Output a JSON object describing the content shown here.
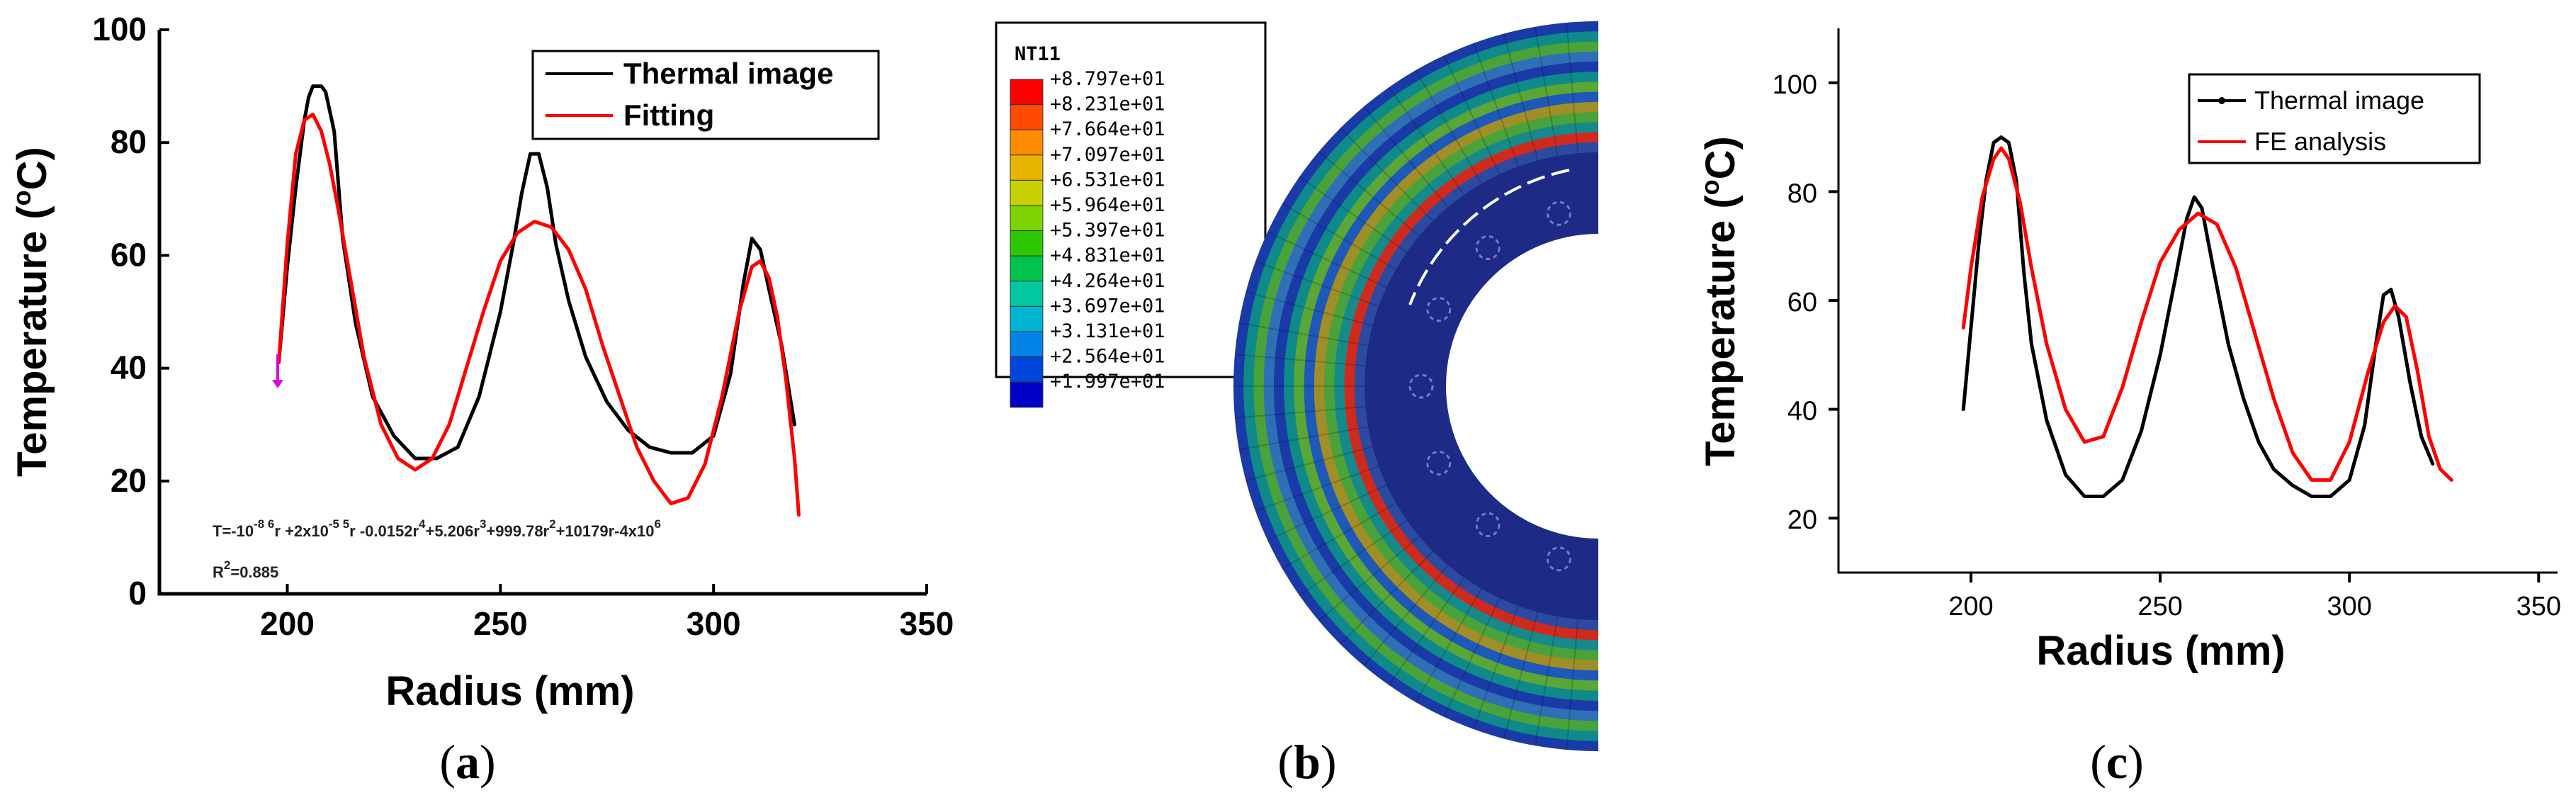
{
  "chart_data": [
    {
      "id": "a",
      "type": "line",
      "panel_label": "a",
      "xlabel": "Radius (mm)",
      "ylabel": "Temperature (°C)",
      "ylabel_main": "Temperature (",
      "ylabel_sup": "o",
      "ylabel_tail": "C)",
      "xlim": [
        170,
        350
      ],
      "ylim": [
        0,
        100
      ],
      "xticks": [
        200,
        250,
        300,
        350
      ],
      "yticks": [
        0,
        20,
        40,
        60,
        80,
        100
      ],
      "legend_position": "top-right",
      "annotation": {
        "equation_parts": [
          {
            "t": "T=-10",
            "sup": "-8 6"
          },
          {
            "t": "r +2x10",
            "sup": "-5 5"
          },
          {
            "t": "r -0.0152r",
            "sup": "4"
          },
          {
            "t": "+5.206r",
            "sup": "3"
          },
          {
            "t": "+999.78r",
            "sup": "2"
          },
          {
            "t": "+10179r-4x10",
            "sup": "6"
          }
        ],
        "r2_label": "R",
        "r2_sup": "2",
        "r2_value": "=0.885"
      },
      "series": [
        {
          "name": "Thermal image",
          "color": "#000000",
          "x": [
            198,
            200,
            202,
            204,
            205,
            206,
            208,
            209,
            211,
            213,
            216,
            220,
            225,
            230,
            235,
            240,
            245,
            250,
            253,
            255,
            257,
            259,
            261,
            263,
            266,
            270,
            275,
            280,
            285,
            290,
            295,
            300,
            304,
            307,
            309,
            311,
            313,
            316,
            319
          ],
          "values": [
            41,
            58,
            72,
            84,
            88,
            90,
            90,
            89,
            82,
            63,
            48,
            35,
            28,
            24,
            24,
            26,
            35,
            50,
            62,
            71,
            78,
            78,
            72,
            62,
            52,
            42,
            34,
            29,
            26,
            25,
            25,
            28,
            39,
            55,
            63,
            61,
            54,
            44,
            30
          ]
        },
        {
          "name": "Fitting",
          "color": "#ff0000",
          "x": [
            198,
            200,
            202,
            204,
            206,
            208,
            210,
            212,
            215,
            218,
            222,
            226,
            230,
            234,
            238,
            242,
            246,
            250,
            254,
            258,
            262,
            266,
            270,
            274,
            278,
            282,
            286,
            290,
            294,
            298,
            302,
            306,
            309,
            311,
            313,
            315,
            317,
            319,
            320
          ],
          "values": [
            41,
            62,
            78,
            84,
            85,
            82,
            76,
            68,
            55,
            42,
            30,
            24,
            22,
            24,
            30,
            40,
            50,
            59,
            64,
            66,
            65,
            61,
            54,
            44,
            35,
            26,
            20,
            16,
            17,
            23,
            35,
            50,
            58,
            59,
            56,
            49,
            38,
            24,
            14
          ]
        }
      ]
    },
    {
      "id": "c",
      "type": "line",
      "panel_label": "c",
      "xlabel": "Radius (mm)",
      "ylabel": "Temperature (°C)",
      "ylabel_main": "Temperature (",
      "ylabel_sup": "o",
      "ylabel_tail": "C)",
      "xlim": [
        165,
        355
      ],
      "ylim": [
        10,
        110
      ],
      "xticks": [
        200,
        250,
        300,
        350
      ],
      "yticks": [
        20,
        40,
        60,
        80,
        100
      ],
      "legend_position": "top-right",
      "series": [
        {
          "name": "Thermal image",
          "color": "#000000",
          "x": [
            198,
            200,
            202,
            204,
            206,
            208,
            210,
            212,
            214,
            216,
            220,
            225,
            230,
            235,
            240,
            245,
            250,
            254,
            257,
            259,
            261,
            264,
            268,
            272,
            276,
            280,
            285,
            290,
            295,
            300,
            304,
            307,
            309,
            311,
            313,
            316,
            319,
            322
          ],
          "values": [
            40,
            55,
            70,
            82,
            89,
            90,
            89,
            82,
            65,
            52,
            38,
            28,
            24,
            24,
            27,
            36,
            50,
            64,
            75,
            79,
            77,
            66,
            52,
            42,
            34,
            29,
            26,
            24,
            24,
            27,
            37,
            52,
            61,
            62,
            57,
            45,
            35,
            30
          ]
        },
        {
          "name": "FE analysis",
          "color": "#ff0000",
          "x": [
            198,
            200,
            203,
            206,
            208,
            210,
            213,
            216,
            220,
            225,
            230,
            235,
            240,
            245,
            250,
            255,
            260,
            265,
            270,
            275,
            280,
            285,
            290,
            295,
            300,
            305,
            309,
            312,
            315,
            318,
            321,
            324,
            327
          ],
          "values": [
            55,
            66,
            79,
            86,
            88,
            86,
            78,
            66,
            52,
            40,
            34,
            35,
            44,
            56,
            67,
            73,
            76,
            74,
            66,
            54,
            42,
            32,
            27,
            27,
            34,
            47,
            56,
            59,
            57,
            47,
            35,
            29,
            27
          ]
        }
      ]
    }
  ],
  "contour": {
    "panel_label": "b",
    "variable": "NT11",
    "legend_values": [
      "+8.797e+01",
      "+8.231e+01",
      "+7.664e+01",
      "+7.097e+01",
      "+6.531e+01",
      "+5.964e+01",
      "+5.397e+01",
      "+4.831e+01",
      "+4.264e+01",
      "+3.697e+01",
      "+3.131e+01",
      "+2.564e+01",
      "+1.997e+01"
    ],
    "legend_colors": [
      "#ff0000",
      "#ff4a00",
      "#ff8c00",
      "#e8b400",
      "#c8d200",
      "#7ed400",
      "#2dc800",
      "#00c24c",
      "#00c8a0",
      "#00b4d2",
      "#0082e6",
      "#0046dc",
      "#0000c8"
    ],
    "rings_outer_to_inner": [
      "#1a3aa8",
      "#0e8a8a",
      "#4aa23a",
      "#2f6fb6",
      "#1a3aa8",
      "#0e8a8a",
      "#5aa636",
      "#1e58b8",
      "#a08e28",
      "#4aa23a",
      "#168a8a",
      "#ce2b1e",
      "#2b4aa0"
    ]
  }
}
